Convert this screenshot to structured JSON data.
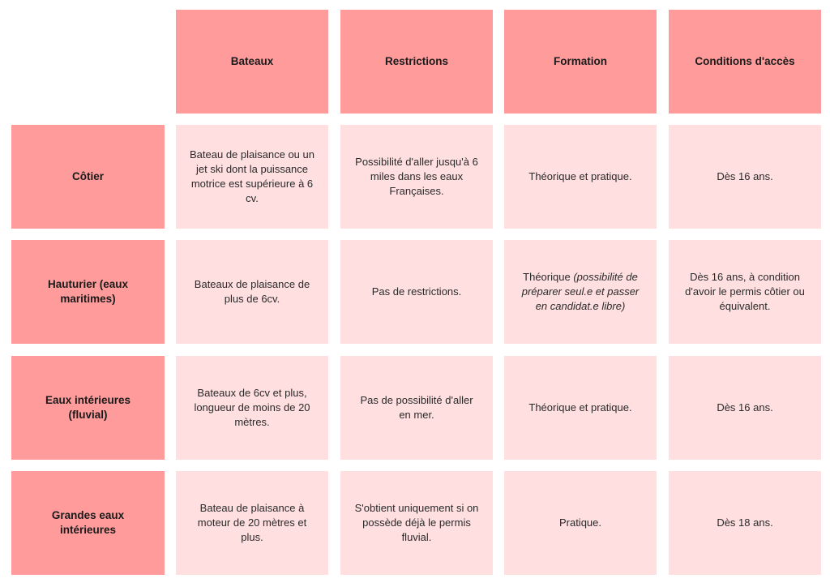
{
  "columns": [
    "Bateaux",
    "Restrictions",
    "Formation",
    "Conditions d'accès"
  ],
  "rows": [
    {
      "label": "Côtier",
      "bateaux": "Bateau de plaisance ou un jet ski dont la puissance motrice est supérieure à 6 cv.",
      "restrictions": "Possibilité d'aller jusqu'à 6 miles dans les eaux Françaises.",
      "formation": "Théorique et pratique.",
      "formation_note": "",
      "conditions": "Dès 16 ans."
    },
    {
      "label": "Hauturier (eaux maritimes)",
      "bateaux": "Bateaux de plaisance de plus de 6cv.",
      "restrictions": "Pas de restrictions.",
      "formation": "Théorique",
      "formation_note": "(possibilité de préparer seul.e et passer en candidat.e libre)",
      "conditions": "Dès 16 ans, à condition d'avoir le permis côtier ou équivalent."
    },
    {
      "label": "Eaux intérieures (fluvial)",
      "bateaux": "Bateaux de 6cv et plus, longueur de moins de 20 mètres.",
      "restrictions": "Pas de possibilité d'aller en mer.",
      "formation": "Théorique et pratique.",
      "formation_note": "",
      "conditions": "Dès 16 ans."
    },
    {
      "label": "Grandes eaux intérieures",
      "bateaux": "Bateau de plaisance à moteur de 20 mètres et plus.",
      "restrictions": "S'obtient uniquement si on possède déjà le permis fluvial.",
      "formation": "Pratique.",
      "formation_note": "",
      "conditions": "Dès 18 ans."
    }
  ],
  "colors": {
    "header": "#ff9b9b",
    "body": "#ffdfe0"
  }
}
